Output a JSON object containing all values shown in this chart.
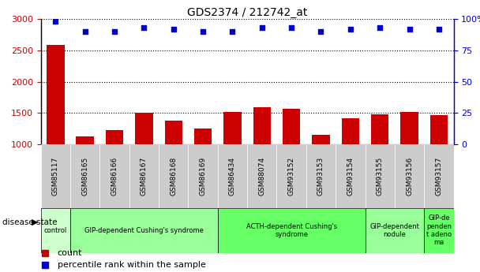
{
  "title": "GDS2374 / 212742_at",
  "categories": [
    "GSM85117",
    "GSM86165",
    "GSM86166",
    "GSM86167",
    "GSM86168",
    "GSM86169",
    "GSM86434",
    "GSM88074",
    "GSM93152",
    "GSM93153",
    "GSM93154",
    "GSM93155",
    "GSM93156",
    "GSM93157"
  ],
  "bar_values": [
    2580,
    1130,
    1220,
    1500,
    1370,
    1250,
    1510,
    1590,
    1570,
    1150,
    1420,
    1480,
    1510,
    1460
  ],
  "scatter_values": [
    98,
    90,
    90,
    93,
    92,
    90,
    90,
    93,
    93,
    90,
    92,
    93,
    92,
    92
  ],
  "ylim_left": [
    1000,
    3000
  ],
  "ylim_right": [
    0,
    100
  ],
  "yticks_left": [
    1000,
    1500,
    2000,
    2500,
    3000
  ],
  "yticks_right": [
    0,
    25,
    50,
    75,
    100
  ],
  "yticklabels_right": [
    "0",
    "25",
    "50",
    "75",
    "100%"
  ],
  "bar_color": "#cc0000",
  "scatter_color": "#0000cc",
  "tick_label_bg": "#cccccc",
  "disease_groups": [
    {
      "label": "control",
      "start": 0,
      "end": 1,
      "color": "#ccffcc"
    },
    {
      "label": "GIP-dependent Cushing's syndrome",
      "start": 1,
      "end": 6,
      "color": "#99ff99"
    },
    {
      "label": "ACTH-dependent Cushing's\nsyndrome",
      "start": 6,
      "end": 11,
      "color": "#66ff66"
    },
    {
      "label": "GIP-dependent\nnodule",
      "start": 11,
      "end": 13,
      "color": "#99ff99"
    },
    {
      "label": "GIP-de\npenden\nt adeno\nma",
      "start": 13,
      "end": 14,
      "color": "#66ff66"
    }
  ],
  "legend_items": [
    {
      "label": "count",
      "color": "#cc0000"
    },
    {
      "label": "percentile rank within the sample",
      "color": "#0000cc"
    }
  ],
  "disease_state_label": "disease state",
  "left_ylabel_color": "#cc0000",
  "right_ylabel_color": "#0000cc"
}
